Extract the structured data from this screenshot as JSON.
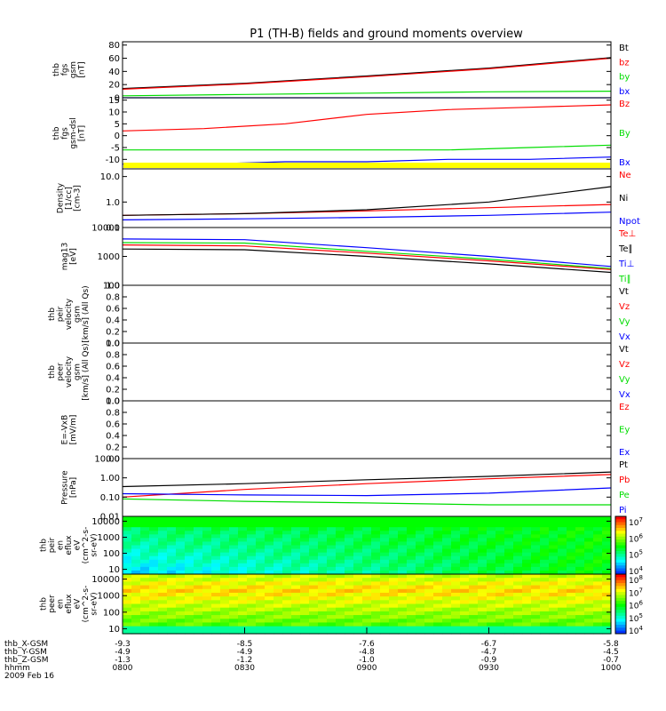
{
  "title": "P1 (TH-B) fields and ground moments overview",
  "colors": {
    "black": "#000000",
    "red": "#ff0000",
    "green": "#00dd00",
    "blue": "#0000ff",
    "yellow": "#ffff00"
  },
  "chart_data": [
    {
      "id": "fgs",
      "type": "line",
      "ylabel_lines": [
        "thb",
        "fgs",
        "gsm",
        "[nT]"
      ],
      "ylim": [
        0,
        85
      ],
      "yticks": [
        "80",
        "60",
        "40",
        "20",
        "0"
      ],
      "ytick_values": [
        80,
        60,
        40,
        20,
        0
      ],
      "log": false,
      "legend": [
        {
          "name": "Bt",
          "color": "#000000"
        },
        {
          "name": "bz",
          "color": "#ff0000"
        },
        {
          "name": "by",
          "color": "#00dd00"
        },
        {
          "name": "bx",
          "color": "#0000ff"
        }
      ],
      "series": [
        {
          "name": "Bt",
          "color": "#000000",
          "x": [
            0,
            30,
            60,
            90,
            120
          ],
          "y": [
            14,
            22,
            33,
            45,
            61
          ]
        },
        {
          "name": "Bz",
          "color": "#ff0000",
          "x": [
            0,
            30,
            60,
            90,
            120
          ],
          "y": [
            13,
            21,
            32,
            44,
            60
          ]
        },
        {
          "name": "By",
          "color": "#00dd00",
          "x": [
            0,
            30,
            60,
            90,
            120
          ],
          "y": [
            3,
            5,
            7,
            9,
            10
          ]
        },
        {
          "name": "Bx",
          "color": "#0000ff",
          "x": [
            0,
            30,
            60,
            90,
            120
          ],
          "y": [
            0,
            0,
            0,
            0,
            0
          ]
        }
      ]
    },
    {
      "id": "fgs_dsl",
      "type": "line",
      "ylabel_lines": [
        "thb",
        "fgs",
        "gsm-dsl",
        "[nT]"
      ],
      "ylim": [
        -14,
        16
      ],
      "yticks": [
        "15",
        "10",
        "5",
        "0",
        "-5",
        "-10"
      ],
      "ytick_values": [
        15,
        10,
        5,
        0,
        -5,
        -10
      ],
      "log": false,
      "legend": [
        {
          "name": "Bz",
          "color": "#ff0000"
        },
        {
          "name": "By",
          "color": "#00dd00"
        },
        {
          "name": "Bx",
          "color": "#0000ff"
        }
      ],
      "series": [
        {
          "name": "Bz",
          "color": "#ff0000",
          "x": [
            0,
            20,
            40,
            60,
            80,
            100,
            120
          ],
          "y": [
            2,
            3,
            5,
            9,
            11,
            12,
            13
          ]
        },
        {
          "name": "By",
          "color": "#00dd00",
          "x": [
            0,
            20,
            40,
            60,
            80,
            100,
            120
          ],
          "y": [
            -6,
            -6,
            -6,
            -6,
            -6,
            -5,
            -4
          ]
        },
        {
          "name": "Bx",
          "color": "#0000ff",
          "x": [
            0,
            20,
            40,
            60,
            80,
            100,
            120
          ],
          "y": [
            -12,
            -12,
            -11,
            -11,
            -10,
            -10,
            -9
          ]
        }
      ]
    },
    {
      "id": "density",
      "type": "line",
      "ylabel_lines": [
        "Density",
        "[1/cc]",
        "[cm-3]"
      ],
      "ylim": [
        0.1,
        20
      ],
      "yticks": [
        "10.0",
        "1.0",
        "0.1"
      ],
      "ytick_values": [
        10,
        1,
        0.1
      ],
      "log": true,
      "legend": [
        {
          "name": "Ne",
          "color": "#ff0000"
        },
        {
          "name": "Ni",
          "color": "#000000"
        },
        {
          "name": "Npot",
          "color": "#0000ff"
        }
      ],
      "series": [
        {
          "name": "Ne",
          "color": "#ff0000",
          "x": [
            0,
            30,
            60,
            90,
            120
          ],
          "y": [
            0.3,
            0.35,
            0.45,
            0.6,
            0.8
          ]
        },
        {
          "name": "Ni",
          "color": "#000000",
          "x": [
            0,
            30,
            60,
            90,
            120
          ],
          "y": [
            0.3,
            0.35,
            0.5,
            1.0,
            4.0
          ]
        },
        {
          "name": "Npot",
          "color": "#0000ff",
          "x": [
            0,
            30,
            60,
            90,
            120
          ],
          "y": [
            0.2,
            0.22,
            0.25,
            0.3,
            0.4
          ]
        }
      ]
    },
    {
      "id": "temp",
      "type": "line",
      "ylabel_lines": [
        "mag13",
        "[eV]"
      ],
      "ylim": [
        100,
        10000
      ],
      "yticks": [
        "10000",
        "1000",
        "100"
      ],
      "ytick_values": [
        10000,
        1000,
        100
      ],
      "log": true,
      "legend": [
        {
          "name": "Te⊥",
          "color": "#ff0000"
        },
        {
          "name": "Te∥",
          "color": "#000000"
        },
        {
          "name": "Ti⊥",
          "color": "#0000ff"
        },
        {
          "name": "Ti∥",
          "color": "#00dd00"
        }
      ],
      "series": [
        {
          "name": "Ti⊥",
          "color": "#0000ff",
          "x": [
            0,
            30,
            60,
            90,
            120
          ],
          "y": [
            4000,
            3800,
            2000,
            1000,
            450
          ]
        },
        {
          "name": "Ti∥",
          "color": "#00dd00",
          "x": [
            0,
            30,
            60,
            90,
            120
          ],
          "y": [
            3000,
            2900,
            1500,
            800,
            380
          ]
        },
        {
          "name": "Te⊥",
          "color": "#ff0000",
          "x": [
            0,
            30,
            60,
            90,
            120
          ],
          "y": [
            2500,
            2300,
            1300,
            700,
            350
          ]
        },
        {
          "name": "Te∥",
          "color": "#000000",
          "x": [
            0,
            30,
            60,
            90,
            120
          ],
          "y": [
            1800,
            1700,
            1000,
            550,
            280
          ]
        }
      ]
    },
    {
      "id": "peir_vel",
      "type": "line",
      "ylabel_lines": [
        "thb",
        "peir",
        "velocity",
        "gsm",
        "[km/s] (All Qs)"
      ],
      "ylim": [
        0,
        1
      ],
      "yticks": [
        "1.0",
        "0.8",
        "0.6",
        "0.4",
        "0.2",
        "0.0"
      ],
      "ytick_values": [
        1,
        0.8,
        0.6,
        0.4,
        0.2,
        0
      ],
      "log": false,
      "legend": [
        {
          "name": "Vt",
          "color": "#000000"
        },
        {
          "name": "Vz",
          "color": "#ff0000"
        },
        {
          "name": "Vy",
          "color": "#00dd00"
        },
        {
          "name": "Vx",
          "color": "#0000ff"
        }
      ],
      "series": []
    },
    {
      "id": "peer_vel",
      "type": "line",
      "ylabel_lines": [
        "thb",
        "peer",
        "velocity",
        "gsm",
        "[km/s] (All Qs)"
      ],
      "ylim": [
        0,
        1
      ],
      "yticks": [
        "1.0",
        "0.8",
        "0.6",
        "0.4",
        "0.2",
        "0.0"
      ],
      "ytick_values": [
        1,
        0.8,
        0.6,
        0.4,
        0.2,
        0
      ],
      "log": false,
      "legend": [
        {
          "name": "Vt",
          "color": "#000000"
        },
        {
          "name": "Vz",
          "color": "#ff0000"
        },
        {
          "name": "Vy",
          "color": "#00dd00"
        },
        {
          "name": "Vx",
          "color": "#0000ff"
        }
      ],
      "series": []
    },
    {
      "id": "efield",
      "type": "line",
      "ylabel_lines": [
        "E=-VxB",
        "[mV/m]"
      ],
      "ylim": [
        0,
        1
      ],
      "yticks": [
        "1.0",
        "0.8",
        "0.6",
        "0.4",
        "0.2",
        "0.0"
      ],
      "ytick_values": [
        1,
        0.8,
        0.6,
        0.4,
        0.2,
        0
      ],
      "log": false,
      "legend": [
        {
          "name": "Ez",
          "color": "#ff0000"
        },
        {
          "name": "Ey",
          "color": "#00dd00"
        },
        {
          "name": "Ex",
          "color": "#0000ff"
        }
      ],
      "series": []
    },
    {
      "id": "pressure",
      "type": "line",
      "ylabel_lines": [
        "Pressure",
        "[nPa]"
      ],
      "ylim": [
        0.01,
        10
      ],
      "yticks": [
        "10.00",
        "1.00",
        "0.10",
        "0.01"
      ],
      "ytick_values": [
        10,
        1,
        0.1,
        0.01
      ],
      "log": true,
      "legend": [
        {
          "name": "Pt",
          "color": "#000000"
        },
        {
          "name": "Pb",
          "color": "#ff0000"
        },
        {
          "name": "Pe",
          "color": "#00dd00"
        },
        {
          "name": "Pi",
          "color": "#0000ff"
        }
      ],
      "series": [
        {
          "name": "Pt",
          "color": "#000000",
          "x": [
            0,
            30,
            60,
            90,
            120
          ],
          "y": [
            0.35,
            0.5,
            0.8,
            1.2,
            2.0
          ]
        },
        {
          "name": "Pb",
          "color": "#ff0000",
          "x": [
            0,
            30,
            60,
            90,
            120
          ],
          "y": [
            0.1,
            0.25,
            0.5,
            0.9,
            1.5
          ]
        },
        {
          "name": "Pi",
          "color": "#0000ff",
          "x": [
            0,
            30,
            60,
            90,
            120
          ],
          "y": [
            0.15,
            0.13,
            0.12,
            0.16,
            0.3
          ]
        },
        {
          "name": "Pe",
          "color": "#00dd00",
          "x": [
            0,
            30,
            60,
            90,
            120
          ],
          "y": [
            0.08,
            0.06,
            0.05,
            0.04,
            0.04
          ]
        }
      ]
    },
    {
      "id": "peir_spec",
      "type": "heatmap",
      "ylabel_lines": [
        "thb",
        "peir",
        "en",
        "eflux",
        "eV",
        "(cm^2-s-",
        "sr-eV)"
      ],
      "ylim": [
        5,
        20000
      ],
      "yticks": [
        "10000",
        "1000",
        "100",
        "10"
      ],
      "ytick_values": [
        10000,
        1000,
        100,
        10
      ],
      "log": true,
      "colorbar_ticks": [
        "10^7",
        "10^6",
        "10^5",
        "10^4"
      ],
      "colorbar_range": [
        3.5,
        7.7
      ]
    },
    {
      "id": "peer_spec",
      "type": "heatmap",
      "ylabel_lines": [
        "thb",
        "peer",
        "en",
        "eflux",
        "eV",
        "(cm^2-s-",
        "sr-eV)"
      ],
      "ylim": [
        5,
        20000
      ],
      "yticks": [
        "10000",
        "1000",
        "100",
        "10"
      ],
      "ytick_values": [
        10000,
        1000,
        100,
        10
      ],
      "log": true,
      "colorbar_ticks": [
        "10^8",
        "10^7",
        "10^6",
        "10^5",
        "10^4"
      ],
      "colorbar_range": [
        3.5,
        8.3
      ]
    }
  ],
  "xaxis": {
    "ticks_minutes": [
      0,
      30,
      60,
      90,
      120
    ],
    "rows": [
      {
        "label": "thb_X-GSM",
        "values": [
          "-9.3",
          "-8.5",
          "-7.6",
          "-6.7",
          "-5.8"
        ]
      },
      {
        "label": "thb_Y-GSM",
        "values": [
          "-4.9",
          "-4.9",
          "-4.8",
          "-4.7",
          "-4.5"
        ]
      },
      {
        "label": "thb_Z-GSM",
        "values": [
          "-1.3",
          "-1.2",
          "-1.0",
          "-0.9",
          "-0.7"
        ]
      },
      {
        "label": "hhmm",
        "values": [
          "0800",
          "0830",
          "0900",
          "0930",
          "1000"
        ]
      }
    ],
    "date": "2009 Feb 16"
  }
}
